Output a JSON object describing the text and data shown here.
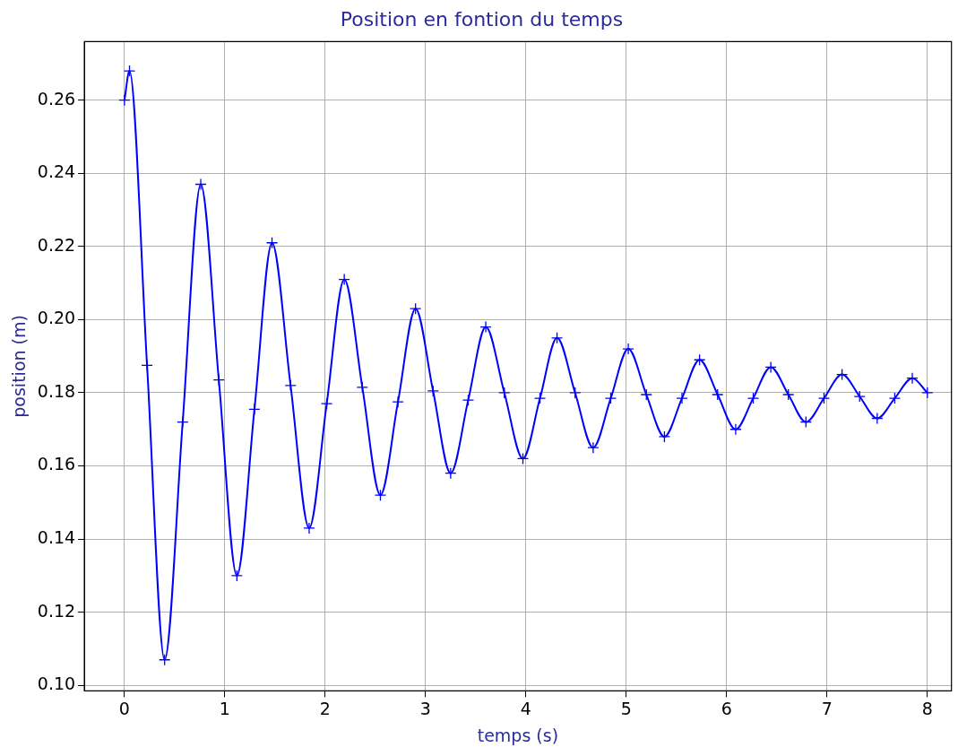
{
  "chart_data": {
    "type": "line",
    "title": "Position en fontion du temps",
    "xlabel": "temps (s)",
    "ylabel": "position (m)",
    "series": [
      {
        "color": "#0000ff",
        "x": [
          0,
          0.05,
          0.225,
          0.4,
          0.58,
          0.76,
          0.94,
          1.12,
          1.295,
          1.47,
          1.655,
          1.84,
          2.015,
          2.19,
          2.37,
          2.55,
          2.725,
          2.9,
          3.075,
          3.25,
          3.425,
          3.6,
          3.785,
          3.97,
          4.14,
          4.31,
          4.49,
          4.67,
          4.845,
          5.02,
          5.2,
          5.38,
          5.555,
          5.73,
          5.91,
          6.09,
          6.265,
          6.44,
          6.615,
          6.79,
          6.97,
          7.15,
          7.325,
          7.5,
          7.675,
          7.85,
          8.0
        ],
        "values": [
          0.26,
          0.268,
          0.1875,
          0.107,
          0.172,
          0.237,
          0.1835,
          0.13,
          0.1755,
          0.221,
          0.182,
          0.143,
          0.177,
          0.211,
          0.1815,
          0.152,
          0.1775,
          0.203,
          0.1805,
          0.158,
          0.178,
          0.198,
          0.18,
          0.162,
          0.1785,
          0.195,
          0.18,
          0.165,
          0.1785,
          0.192,
          0.1795,
          0.168,
          0.1785,
          0.189,
          0.1795,
          0.17,
          0.1785,
          0.187,
          0.1795,
          0.172,
          0.1785,
          0.185,
          0.179,
          0.173,
          0.1785,
          0.184,
          0.18
        ]
      }
    ],
    "xlim": [
      -0.4,
      8.24
    ],
    "xticks": [
      0,
      1,
      2,
      3,
      4,
      5,
      6,
      7,
      8
    ],
    "ylim": [
      0.0985,
      0.276
    ],
    "yticks": [
      {
        "value": 0.1,
        "label": "0.10"
      },
      0.12,
      0.14,
      0.16,
      0.18,
      {
        "value": 0.2,
        "label": "0.20"
      },
      0.22,
      0.24,
      0.26
    ],
    "grid": true,
    "marker": "cross",
    "line_style": "solid"
  }
}
